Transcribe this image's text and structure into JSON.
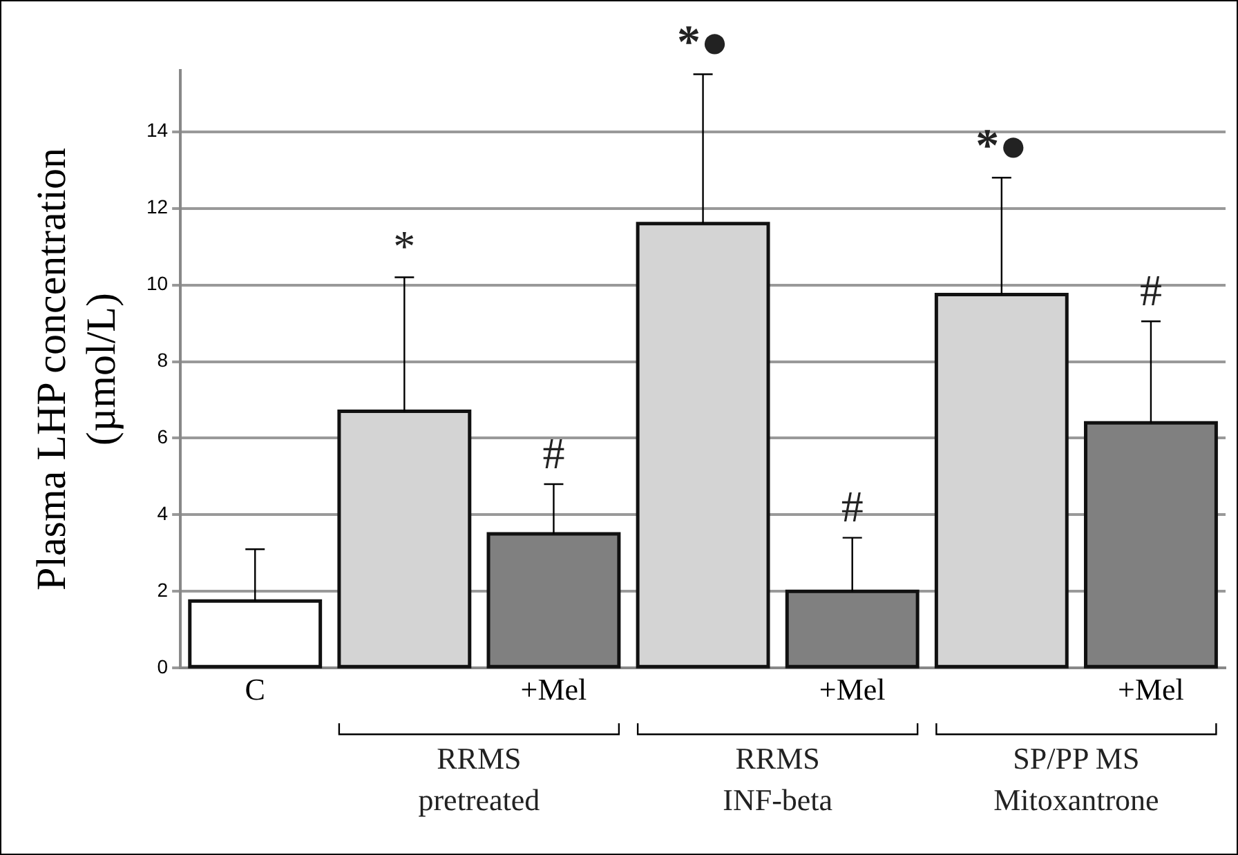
{
  "chart_data": {
    "type": "bar",
    "ylabel": "Plasma LHP concentration\n(µmol/L)",
    "categories": [
      "C",
      null,
      "+Mel",
      null,
      "+Mel",
      null,
      "+Mel"
    ],
    "values": [
      1.75,
      6.7,
      3.5,
      11.6,
      2.0,
      9.75,
      6.4
    ],
    "colors": [
      "#ffffff",
      "#d4d4d4",
      "#808080",
      "#d4d4d4",
      "#808080",
      "#d4d4d4",
      "#808080"
    ],
    "errors": [
      [
        1.75,
        3.1
      ],
      [
        6.7,
        10.2
      ],
      [
        3.5,
        4.8
      ],
      [
        11.6,
        15.5
      ],
      [
        2.0,
        3.4
      ],
      [
        9.75,
        12.8
      ],
      [
        6.4,
        9.05
      ]
    ],
    "ylim": [
      0,
      15.6
    ],
    "yticks": [
      0,
      2,
      4,
      6,
      8,
      10,
      12,
      14
    ],
    "grid": "y",
    "legend": false,
    "annotations": [
      "*",
      "#",
      "*●",
      "#",
      "*●",
      "#",
      "RRMS\npretreated",
      "RRMS\nINF-beta",
      "SP/PP MS\nMitoxantrone"
    ]
  }
}
